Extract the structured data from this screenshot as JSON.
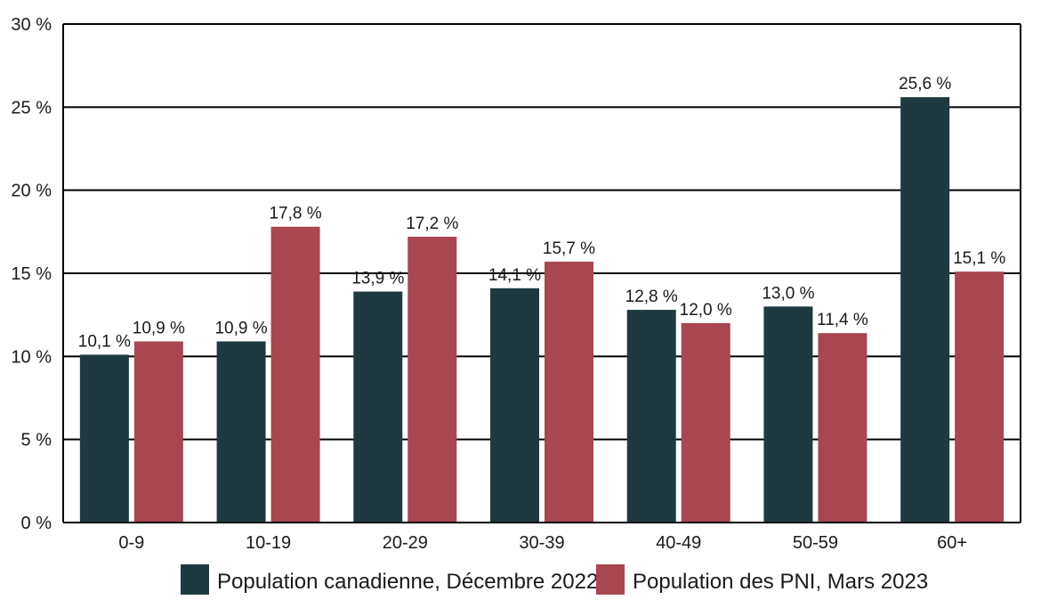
{
  "chart_data": {
    "type": "bar",
    "title": "",
    "xlabel": "",
    "ylabel": "",
    "ylim": [
      0,
      30
    ],
    "yticks": [
      0,
      5,
      10,
      15,
      20,
      25,
      30
    ],
    "ytick_labels": [
      "0 %",
      "5 %",
      "10 %",
      "15 %",
      "20 %",
      "25 %",
      "30 %"
    ],
    "grid": true,
    "legend_position": "bottom",
    "categories": [
      "0-9",
      "10-19",
      "20-29",
      "30-39",
      "40-49",
      "50-59",
      "60+"
    ],
    "series": [
      {
        "name": "Population canadienne, Décembre 2022",
        "color": "#1e3a40",
        "values": [
          10.1,
          10.9,
          13.9,
          14.1,
          12.8,
          13.0,
          25.6
        ],
        "labels": [
          "10,1 %",
          "10,9 %",
          "13,9 %",
          "14,1 %",
          "12,8 %",
          "13,0 %",
          "25,6 %"
        ]
      },
      {
        "name": "Population des PNI, Mars 2023",
        "color": "#a84652",
        "values": [
          10.9,
          17.8,
          17.2,
          15.7,
          12.0,
          11.4,
          15.1
        ],
        "labels": [
          "10,9 %",
          "17,8 %",
          "17,2 %",
          "15,7 %",
          "12,0 %",
          "11,4 %",
          "15,1 %"
        ]
      }
    ]
  }
}
